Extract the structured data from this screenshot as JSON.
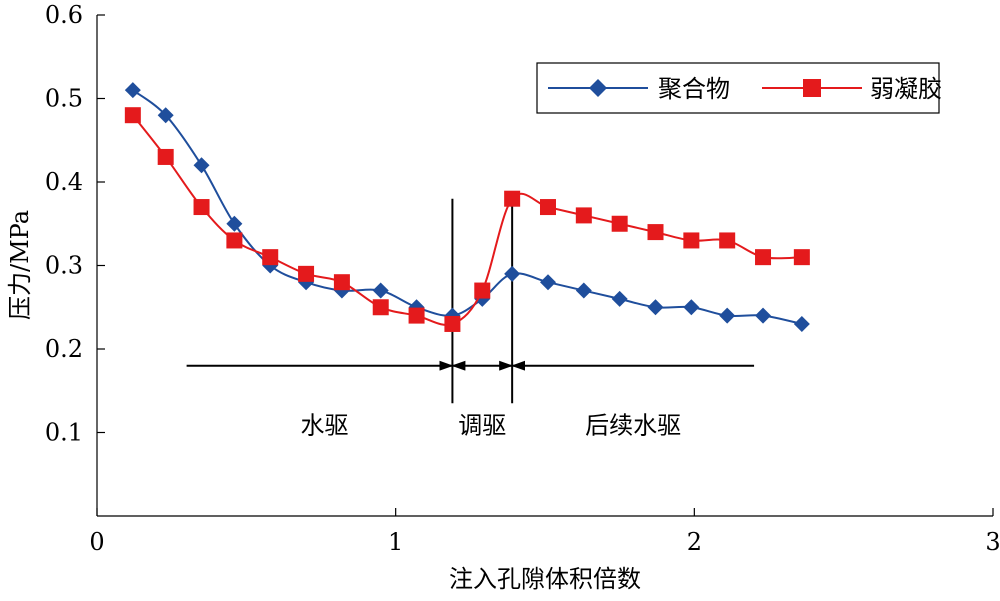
{
  "chart_data": {
    "type": "line",
    "title": "",
    "xlabel": "注入孔隙体积倍数",
    "ylabel": "压力/MPa",
    "xlim": [
      0,
      3
    ],
    "ylim": [
      0,
      0.6
    ],
    "xticks": [
      0,
      1,
      2,
      3
    ],
    "xtick_labels": [
      "0",
      "1",
      "2",
      "3"
    ],
    "yticks": [
      0.1,
      0.2,
      0.3,
      0.4,
      0.5,
      0.6
    ],
    "ytick_labels": [
      "0.1",
      "0.2",
      "0.3",
      "0.4",
      "0.5",
      "0.6"
    ],
    "legend_position": "top-right",
    "series": [
      {
        "name": "聚合物",
        "color": "#1f4e9c",
        "marker": "diamond",
        "x": [
          0.12,
          0.23,
          0.35,
          0.46,
          0.58,
          0.7,
          0.82,
          0.95,
          1.07,
          1.19,
          1.29,
          1.39,
          1.51,
          1.63,
          1.75,
          1.87,
          1.99,
          2.11,
          2.23,
          2.36
        ],
        "y": [
          0.51,
          0.48,
          0.42,
          0.35,
          0.3,
          0.28,
          0.27,
          0.27,
          0.25,
          0.24,
          0.26,
          0.29,
          0.28,
          0.27,
          0.26,
          0.25,
          0.25,
          0.24,
          0.24,
          0.23
        ]
      },
      {
        "name": "弱凝胶",
        "color": "#e41a1c",
        "marker": "square",
        "x": [
          0.12,
          0.23,
          0.35,
          0.46,
          0.58,
          0.7,
          0.82,
          0.95,
          1.07,
          1.19,
          1.29,
          1.39,
          1.51,
          1.63,
          1.75,
          1.87,
          1.99,
          2.11,
          2.23,
          2.36
        ],
        "y": [
          0.48,
          0.43,
          0.37,
          0.33,
          0.31,
          0.29,
          0.28,
          0.25,
          0.24,
          0.23,
          0.27,
          0.38,
          0.37,
          0.36,
          0.35,
          0.34,
          0.33,
          0.33,
          0.31,
          0.31
        ]
      }
    ],
    "phase_dividers": [
      1.19,
      1.39
    ],
    "phase_y": 0.18,
    "phases": [
      {
        "label": "水驱",
        "from": 0.3,
        "to": 1.19
      },
      {
        "label": "调驱",
        "from": 1.19,
        "to": 1.39
      },
      {
        "label": "后续水驱",
        "from": 1.39,
        "to": 2.2
      }
    ]
  }
}
